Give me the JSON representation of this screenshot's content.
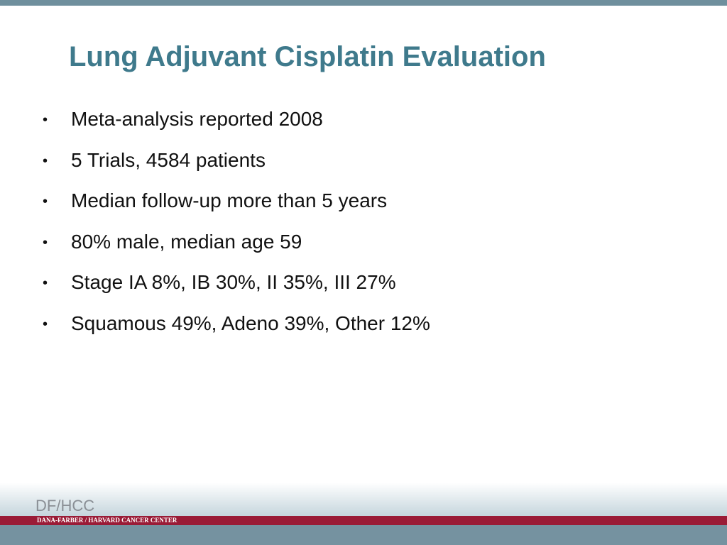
{
  "title": "Lung Adjuvant Cisplatin Evaluation",
  "bullets": [
    "Meta-analysis reported 2008",
    "5 Trials, 4584 patients",
    "Median follow-up more than 5 years",
    "80% male, median age 59",
    "Stage IA 8%, IB 30%, II 35%, III 27%",
    "Squamous 49%, Adeno 39%, Other 12%"
  ],
  "footer": {
    "logo": "DF/HCC",
    "org": "DANA-FARBER / HARVARD CANCER CENTER"
  }
}
